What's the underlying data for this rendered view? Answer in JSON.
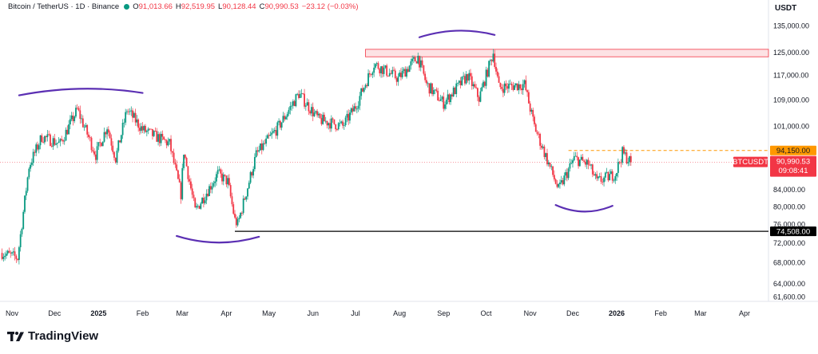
{
  "header": {
    "symbol": "Bitcoin / TetherUS · 1D · Binance",
    "open_label": "O",
    "open": "91,013.66",
    "high_label": "H",
    "high": "92,519.95",
    "low_label": "L",
    "low": "90,128.44",
    "close_label": "C",
    "close": "90,990.53",
    "change": "−23.12 (−0.03%)",
    "currency": "USDT"
  },
  "brand": {
    "name": "TradingView"
  },
  "colors": {
    "up": "#089981",
    "down": "#f23645",
    "marker": "#5b2fb3",
    "resistance_fill": "#fde2e4",
    "orange": "#ff9800"
  },
  "chart_data": {
    "type": "candlestick",
    "symbol": "BTCUSDT",
    "price_axis_ticks": [
      {
        "value": 135000,
        "label": "135,000.00"
      },
      {
        "value": 125000,
        "label": "125,000.00"
      },
      {
        "value": 117000,
        "label": "117,000.00"
      },
      {
        "value": 109000,
        "label": "109,000.00"
      },
      {
        "value": 101000,
        "label": "101,000.00"
      },
      {
        "value": 84000,
        "label": "84,000.00"
      },
      {
        "value": 80000,
        "label": "80,000.00"
      },
      {
        "value": 76000,
        "label": "76,000.00"
      },
      {
        "value": 72000,
        "label": "72,000.00"
      },
      {
        "value": 68000,
        "label": "68,000.00"
      },
      {
        "value": 64000,
        "label": "64,000.00"
      },
      {
        "value": 61600,
        "label": "61,600.00"
      }
    ],
    "time_axis_ticks": [
      {
        "date": "2024-11-01",
        "label": "Nov"
      },
      {
        "date": "2024-12-01",
        "label": "Dec"
      },
      {
        "date": "2025-01-01",
        "label": "2025"
      },
      {
        "date": "2025-02-01",
        "label": "Feb"
      },
      {
        "date": "2025-03-01",
        "label": "Mar"
      },
      {
        "date": "2025-04-01",
        "label": "Apr"
      },
      {
        "date": "2025-05-01",
        "label": "May"
      },
      {
        "date": "2025-06-01",
        "label": "Jun"
      },
      {
        "date": "2025-07-01",
        "label": "Jul"
      },
      {
        "date": "2025-08-01",
        "label": "Aug"
      },
      {
        "date": "2025-09-01",
        "label": "Sep"
      },
      {
        "date": "2025-10-01",
        "label": "Oct"
      },
      {
        "date": "2025-11-01",
        "label": "Nov"
      },
      {
        "date": "2025-12-01",
        "label": "Dec"
      },
      {
        "date": "2026-01-01",
        "label": "2026"
      },
      {
        "date": "2026-02-01",
        "label": "Feb"
      },
      {
        "date": "2026-03-01",
        "label": "Mar"
      },
      {
        "date": "2026-04-01",
        "label": "Apr"
      }
    ],
    "price_path": [
      [
        "2024-10-25",
        70000
      ],
      [
        "2024-11-05",
        69000
      ],
      [
        "2024-11-13",
        90000
      ],
      [
        "2024-11-22",
        98000
      ],
      [
        "2024-12-05",
        96000
      ],
      [
        "2024-12-17",
        106000
      ],
      [
        "2024-12-30",
        93000
      ],
      [
        "2025-01-07",
        101000
      ],
      [
        "2025-01-13",
        92000
      ],
      [
        "2025-01-21",
        106000
      ],
      [
        "2025-02-01",
        100000
      ],
      [
        "2025-02-20",
        96000
      ],
      [
        "2025-02-28",
        83000
      ],
      [
        "2025-03-02",
        94000
      ],
      [
        "2025-03-10",
        79000
      ],
      [
        "2025-03-26",
        88000
      ],
      [
        "2025-04-02",
        86000
      ],
      [
        "2025-04-07",
        77000
      ],
      [
        "2025-04-09",
        76000
      ],
      [
        "2025-04-22",
        93000
      ],
      [
        "2025-05-08",
        101000
      ],
      [
        "2025-05-22",
        111000
      ],
      [
        "2025-06-05",
        103000
      ],
      [
        "2025-06-22",
        101000
      ],
      [
        "2025-07-01",
        107000
      ],
      [
        "2025-07-14",
        121000
      ],
      [
        "2025-07-31",
        116000
      ],
      [
        "2025-08-14",
        123500
      ],
      [
        "2025-08-20",
        114000
      ],
      [
        "2025-09-01",
        108000
      ],
      [
        "2025-09-18",
        117000
      ],
      [
        "2025-09-26",
        109500
      ],
      [
        "2025-10-06",
        125000
      ],
      [
        "2025-10-10",
        113000
      ],
      [
        "2025-10-28",
        114000
      ],
      [
        "2025-11-04",
        101000
      ],
      [
        "2025-11-21",
        84000
      ],
      [
        "2025-12-02",
        92000
      ],
      [
        "2025-12-12",
        90500
      ],
      [
        "2025-12-18",
        86000
      ],
      [
        "2025-12-31",
        88000
      ],
      [
        "2026-01-05",
        93500
      ],
      [
        "2026-01-11",
        90990
      ]
    ],
    "last_date": "2026-01-11",
    "resistance_zone": {
      "from_date": "2025-07-08",
      "low": 123500,
      "high": 126200
    },
    "support_line": {
      "from_date": "2025-04-07",
      "value": 74508,
      "label": "74,508.00"
    },
    "dashed_level": {
      "from_date": "2025-11-28",
      "value": 94150,
      "label": "94,150.00"
    },
    "last_price": {
      "value": 90990.53,
      "label": "90,990.53",
      "ticker": "BTCUSDT",
      "countdown": "09:08:41"
    },
    "annotations": [
      {
        "type": "arc",
        "shape": "cap",
        "from_date": "2024-11-06",
        "to_date": "2025-02-01",
        "level": 112000
      },
      {
        "type": "arc",
        "shape": "cap",
        "from_date": "2025-08-15",
        "to_date": "2025-10-07",
        "level": 132500
      },
      {
        "type": "arc",
        "shape": "cup",
        "from_date": "2025-02-25",
        "to_date": "2025-04-24",
        "level": 72500
      },
      {
        "type": "arc",
        "shape": "cup",
        "from_date": "2025-11-19",
        "to_date": "2025-12-29",
        "level": 79300
      }
    ]
  }
}
